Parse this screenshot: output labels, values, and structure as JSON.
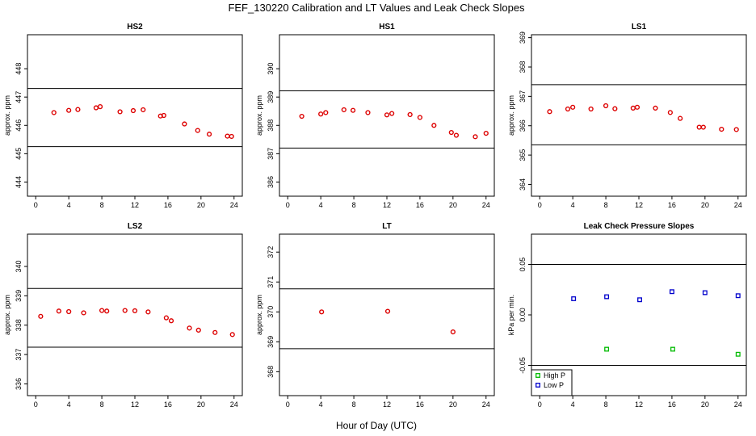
{
  "figure": {
    "title": "FEF_130220  Calibration and LT Values and Leak Check Slopes",
    "xlabel": "Hour of Day (UTC)"
  },
  "chart_data": [
    {
      "type": "scatter",
      "title": "HS2",
      "ylabel": "approx. ppm",
      "xlim": [
        -1,
        25
      ],
      "ylim": [
        443.5,
        449.2
      ],
      "xticks": [
        0,
        4,
        8,
        12,
        16,
        20,
        24
      ],
      "yticks": [
        444,
        445,
        446,
        447,
        448
      ],
      "hlines": [
        445.25,
        447.3
      ],
      "series": [
        {
          "color": "#dd0000",
          "marker": "circle",
          "x": [
            2.2,
            4.0,
            5.1,
            7.3,
            7.8,
            10.2,
            11.8,
            13.0,
            15.1,
            15.5,
            18.0,
            19.6,
            21.0,
            23.2,
            23.7
          ],
          "y": [
            446.45,
            446.53,
            446.56,
            446.62,
            446.66,
            446.48,
            446.52,
            446.55,
            446.33,
            446.35,
            446.05,
            445.82,
            445.69,
            445.62,
            445.61
          ]
        }
      ]
    },
    {
      "type": "scatter",
      "title": "HS1",
      "ylabel": "approx. ppm",
      "xlim": [
        -1,
        25
      ],
      "ylim": [
        385.5,
        391.2
      ],
      "xticks": [
        0,
        4,
        8,
        12,
        16,
        20,
        24
      ],
      "yticks": [
        386,
        387,
        388,
        389,
        390
      ],
      "hlines": [
        387.2,
        389.22
      ],
      "series": [
        {
          "color": "#dd0000",
          "marker": "circle",
          "x": [
            1.7,
            4.0,
            4.6,
            6.8,
            7.9,
            9.7,
            12.0,
            12.6,
            14.8,
            16.0,
            17.7,
            19.8,
            20.4,
            22.7,
            24.0
          ],
          "y": [
            388.32,
            388.4,
            388.45,
            388.55,
            388.53,
            388.45,
            388.37,
            388.42,
            388.38,
            388.28,
            388.0,
            387.75,
            387.65,
            387.6,
            387.72
          ]
        }
      ]
    },
    {
      "type": "scatter",
      "title": "LS1",
      "ylabel": "approx. ppm",
      "xlim": [
        -1,
        25
      ],
      "ylim": [
        363.6,
        369.1
      ],
      "xticks": [
        0,
        4,
        8,
        12,
        16,
        20,
        24
      ],
      "yticks": [
        364,
        365,
        366,
        367,
        368,
        369
      ],
      "hlines": [
        365.35,
        367.4
      ],
      "series": [
        {
          "color": "#dd0000",
          "marker": "circle",
          "x": [
            1.2,
            3.4,
            4.0,
            6.2,
            8.0,
            9.1,
            11.3,
            11.8,
            14.0,
            15.8,
            17.0,
            19.3,
            19.8,
            22.0,
            23.8
          ],
          "y": [
            366.48,
            366.57,
            366.63,
            366.57,
            366.68,
            366.58,
            366.6,
            366.63,
            366.6,
            366.45,
            366.25,
            365.95,
            365.95,
            365.88,
            365.87
          ]
        }
      ]
    },
    {
      "type": "scatter",
      "title": "LS2",
      "ylabel": "approx. ppm",
      "xlim": [
        -1,
        25
      ],
      "ylim": [
        335.6,
        341.1
      ],
      "xticks": [
        0,
        4,
        8,
        12,
        16,
        20,
        24
      ],
      "yticks": [
        336,
        337,
        338,
        339,
        340
      ],
      "hlines": [
        337.25,
        339.25
      ],
      "series": [
        {
          "color": "#dd0000",
          "marker": "circle",
          "x": [
            0.6,
            2.8,
            4.0,
            5.8,
            8.0,
            8.6,
            10.8,
            12.0,
            13.6,
            15.8,
            16.4,
            18.6,
            19.7,
            21.7,
            23.8
          ],
          "y": [
            338.3,
            338.48,
            338.46,
            338.42,
            338.5,
            338.48,
            338.5,
            338.49,
            338.45,
            338.25,
            338.15,
            337.9,
            337.83,
            337.75,
            337.68
          ]
        }
      ]
    },
    {
      "type": "scatter",
      "title": "LT",
      "ylabel": "approx. ppm",
      "xlim": [
        -1,
        25
      ],
      "ylim": [
        367.2,
        372.6
      ],
      "xticks": [
        0,
        4,
        8,
        12,
        16,
        20,
        24
      ],
      "yticks": [
        368,
        369,
        370,
        371,
        372
      ],
      "hlines": [
        368.77,
        370.77
      ],
      "series": [
        {
          "color": "#dd0000",
          "marker": "circle",
          "x": [
            4.1,
            12.1,
            20.0
          ],
          "y": [
            370.0,
            370.02,
            369.33
          ]
        }
      ]
    },
    {
      "type": "scatter",
      "title": "Leak Check Pressure Slopes",
      "ylabel": "kPa per min.",
      "xlim": [
        -1,
        25
      ],
      "ylim": [
        -0.08,
        0.08
      ],
      "xticks": [
        0,
        4,
        8,
        12,
        16,
        20,
        24
      ],
      "yticks": [
        -0.05,
        0.0,
        0.05
      ],
      "ytick_labels": [
        "-0.05",
        "0.00",
        "0.05"
      ],
      "hlines": [
        -0.05,
        0.05
      ],
      "legend": "bottom-left",
      "series": [
        {
          "name": "High P",
          "color": "#00bb00",
          "marker": "square",
          "x": [
            8.1,
            16.1,
            24.0
          ],
          "y": [
            -0.034,
            -0.034,
            -0.039
          ]
        },
        {
          "name": "Low P",
          "color": "#0000cc",
          "marker": "square",
          "x": [
            4.1,
            8.1,
            12.1,
            16.0,
            20.0,
            24.0
          ],
          "y": [
            0.016,
            0.018,
            0.015,
            0.023,
            0.022,
            0.019
          ]
        }
      ]
    }
  ]
}
